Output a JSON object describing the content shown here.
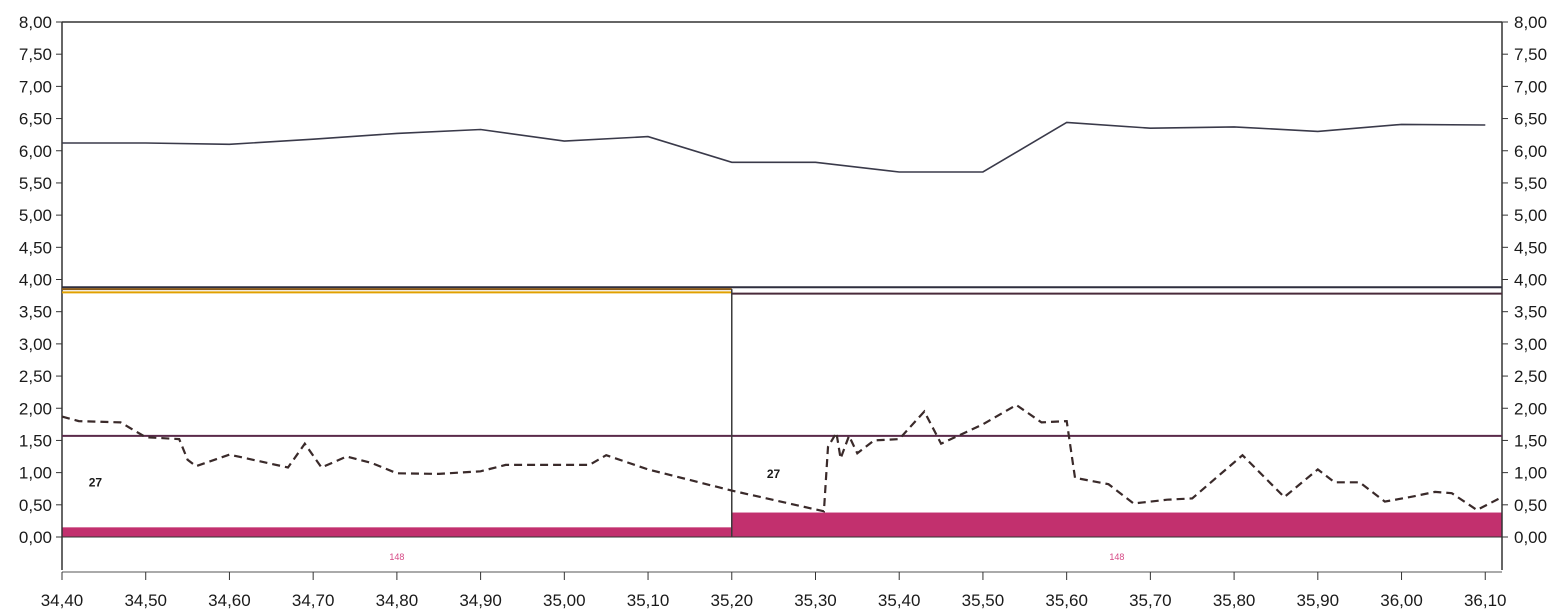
{
  "chart_data": {
    "type": "line",
    "title": "",
    "xlabel": "",
    "ylabel": "",
    "xlim": [
      34.4,
      36.12
    ],
    "ylim": [
      0,
      8
    ],
    "x_ticks": [
      34.4,
      34.5,
      34.6,
      34.7,
      34.8,
      34.9,
      35.0,
      35.1,
      35.2,
      35.3,
      35.4,
      35.5,
      35.6,
      35.7,
      35.8,
      35.9,
      36.0,
      36.1
    ],
    "x_tick_labels": [
      "34,40",
      "34,50",
      "34,60",
      "34,70",
      "34,80",
      "34,90",
      "35,00",
      "35,10",
      "35,20",
      "35,30",
      "35,40",
      "35,50",
      "35,60",
      "35,70",
      "35,80",
      "35,90",
      "36,00",
      "36,10"
    ],
    "y_ticks": [
      0,
      0.5,
      1,
      1.5,
      2,
      2.5,
      3,
      3.5,
      4,
      4.5,
      5,
      5.5,
      6,
      6.5,
      7,
      7.5,
      8
    ],
    "y_tick_labels": [
      "0,00",
      "0,50",
      "1,00",
      "1,50",
      "2,00",
      "2,50",
      "3,00",
      "3,50",
      "4,00",
      "4,50",
      "5,00",
      "5,50",
      "6,00",
      "6,50",
      "7,00",
      "7,50",
      "8,00"
    ],
    "grid": false,
    "legend": "none",
    "series": [
      {
        "style": "solid",
        "color": "#3a3a4a",
        "x": [
          34.4,
          34.5,
          34.6,
          34.7,
          34.8,
          34.9,
          35.0,
          35.1,
          35.2,
          35.3,
          35.4,
          35.5,
          35.6,
          35.7,
          35.8,
          35.9,
          36.0,
          36.1
        ],
        "y": [
          6.12,
          6.12,
          6.1,
          6.18,
          6.27,
          6.33,
          6.15,
          6.22,
          5.82,
          5.82,
          5.67,
          5.67,
          6.44,
          6.35,
          6.37,
          6.3,
          6.41,
          6.4
        ]
      },
      {
        "style": "dashed",
        "color": "#3a2a2a",
        "x": [
          34.4,
          34.42,
          34.47,
          34.5,
          34.54,
          34.55,
          34.56,
          34.6,
          34.67,
          34.69,
          34.71,
          34.74,
          34.77,
          34.8,
          34.85,
          34.9,
          34.93,
          35.03,
          35.05,
          35.1,
          35.2,
          35.31,
          35.315,
          35.325,
          35.33,
          35.34,
          35.35,
          35.37,
          35.4,
          35.43,
          35.45,
          35.5,
          35.54,
          35.57,
          35.6,
          35.61,
          35.65,
          35.68,
          35.7,
          35.72,
          35.75,
          35.81,
          35.86,
          35.9,
          35.92,
          35.95,
          35.98,
          36.01,
          36.04,
          36.06,
          36.09,
          36.12
        ],
        "y": [
          1.87,
          1.8,
          1.78,
          1.55,
          1.52,
          1.2,
          1.1,
          1.28,
          1.08,
          1.45,
          1.08,
          1.25,
          1.15,
          0.99,
          0.98,
          1.02,
          1.12,
          1.12,
          1.27,
          1.05,
          0.72,
          0.4,
          1.4,
          1.62,
          1.22,
          1.57,
          1.3,
          1.5,
          1.52,
          1.95,
          1.45,
          1.75,
          2.05,
          1.78,
          1.8,
          0.92,
          0.82,
          0.52,
          0.55,
          0.58,
          0.6,
          1.27,
          0.62,
          1.05,
          0.85,
          0.85,
          0.55,
          0.62,
          0.7,
          0.68,
          0.42,
          0.62
        ]
      }
    ],
    "horizontal_lines": [
      {
        "y": 3.88,
        "x_range": [
          34.4,
          36.12
        ],
        "color": "#2f2f3f"
      },
      {
        "y": 3.85,
        "x_range": [
          34.4,
          35.2
        ],
        "color": "#8a5a1a"
      },
      {
        "y": 3.8,
        "x_range": [
          34.4,
          35.2
        ],
        "color": "#e0a000"
      },
      {
        "y": 3.78,
        "x_range": [
          35.2,
          36.12
        ],
        "color": "#4a2a3a"
      },
      {
        "y": 1.57,
        "x_range": [
          34.4,
          36.12
        ],
        "color": "#5a2a4a"
      }
    ],
    "vertical_lines": [
      {
        "x": 35.2,
        "y_range": [
          0,
          3.85
        ],
        "color": "#3a3a3a"
      }
    ],
    "bars": [
      {
        "x_range": [
          34.4,
          35.2
        ],
        "height": 0.15,
        "color": "#c2306e"
      },
      {
        "x_range": [
          35.2,
          36.12
        ],
        "height": 0.38,
        "color": "#c2306e"
      }
    ],
    "annotations": [
      {
        "text": "27",
        "x": 34.42,
        "y": 0.85
      },
      {
        "text": "27",
        "x": 35.23,
        "y": 0.98
      }
    ],
    "band_labels": [
      {
        "text": "148",
        "x": 34.8
      },
      {
        "text": "148",
        "x": 35.66
      }
    ]
  }
}
